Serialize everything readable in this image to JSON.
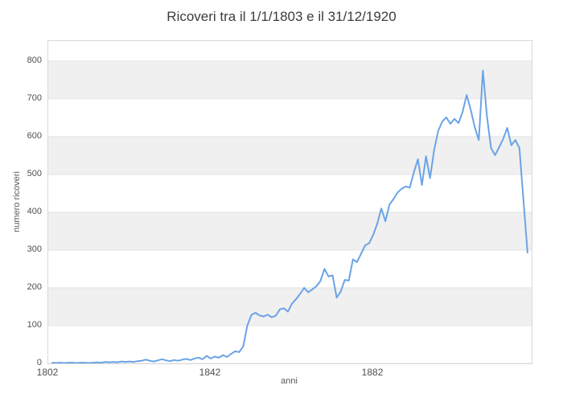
{
  "chart": {
    "title": "Ricoveri tra il 1/1/1803 e il 31/12/1920"
  },
  "chart_data": {
    "type": "line",
    "title": "Ricoveri tra il 1/1/1803 e il 31/12/1920",
    "xlabel": "anni",
    "ylabel": "numero ricoveri",
    "xlim": [
      1802,
      1921
    ],
    "ylim": [
      0,
      853
    ],
    "xticks": [
      1802,
      1842,
      1882
    ],
    "yticks": [
      0,
      100,
      200,
      300,
      400,
      500,
      600,
      700,
      800
    ],
    "grid": "horizontal",
    "background_bands": "alternating gray/white per 100 units",
    "legend": "none",
    "series": [
      {
        "name": "ricoveri",
        "x": [
          1803,
          1804,
          1805,
          1806,
          1807,
          1808,
          1809,
          1810,
          1811,
          1812,
          1813,
          1814,
          1815,
          1816,
          1817,
          1818,
          1819,
          1820,
          1821,
          1822,
          1823,
          1824,
          1825,
          1826,
          1827,
          1828,
          1829,
          1830,
          1831,
          1832,
          1833,
          1834,
          1835,
          1836,
          1837,
          1838,
          1839,
          1840,
          1841,
          1842,
          1843,
          1844,
          1845,
          1846,
          1847,
          1848,
          1849,
          1850,
          1851,
          1852,
          1853,
          1854,
          1855,
          1856,
          1857,
          1858,
          1859,
          1860,
          1861,
          1862,
          1863,
          1864,
          1865,
          1866,
          1867,
          1868,
          1869,
          1870,
          1871,
          1872,
          1873,
          1874,
          1875,
          1876,
          1877,
          1878,
          1879,
          1880,
          1881,
          1882,
          1883,
          1884,
          1885,
          1886,
          1887,
          1888,
          1889,
          1890,
          1891,
          1892,
          1893,
          1894,
          1895,
          1896,
          1897,
          1898,
          1899,
          1900,
          1901,
          1902,
          1903,
          1904,
          1905,
          1906,
          1907,
          1908,
          1909,
          1910,
          1911,
          1912,
          1913,
          1914,
          1915,
          1916,
          1917,
          1918,
          1919,
          1920
        ],
        "values": [
          2,
          1,
          2,
          1,
          2,
          2,
          1,
          2,
          2,
          1,
          2,
          3,
          2,
          4,
          3,
          4,
          3,
          5,
          4,
          5,
          4,
          6,
          7,
          10,
          7,
          5,
          8,
          11,
          8,
          6,
          9,
          7,
          10,
          12,
          9,
          13,
          15,
          11,
          20,
          13,
          18,
          15,
          22,
          17,
          25,
          32,
          30,
          45,
          100,
          128,
          134,
          127,
          124,
          129,
          122,
          126,
          143,
          146,
          137,
          158,
          170,
          184,
          200,
          188,
          196,
          204,
          218,
          250,
          230,
          233,
          174,
          190,
          221,
          219,
          275,
          268,
          290,
          312,
          318,
          340,
          370,
          410,
          376,
          420,
          435,
          452,
          462,
          468,
          465,
          505,
          540,
          472,
          548,
          490,
          565,
          615,
          640,
          651,
          634,
          647,
          636,
          665,
          710,
          672,
          625,
          591,
          775,
          655,
          570,
          551,
          572,
          594,
          623,
          577,
          591,
          570,
          430,
          293
        ]
      }
    ],
    "colors": {
      "line": "#6ba3e6",
      "band_gray": "#f0f0f0",
      "gridline": "#e3e3e3",
      "plot_border": "#d8d8d8",
      "title_text": "#3c3c3c",
      "tick_text": "#4f4f4f",
      "axis_label_text": "#5a5a5a",
      "background": "#ffffff"
    }
  }
}
